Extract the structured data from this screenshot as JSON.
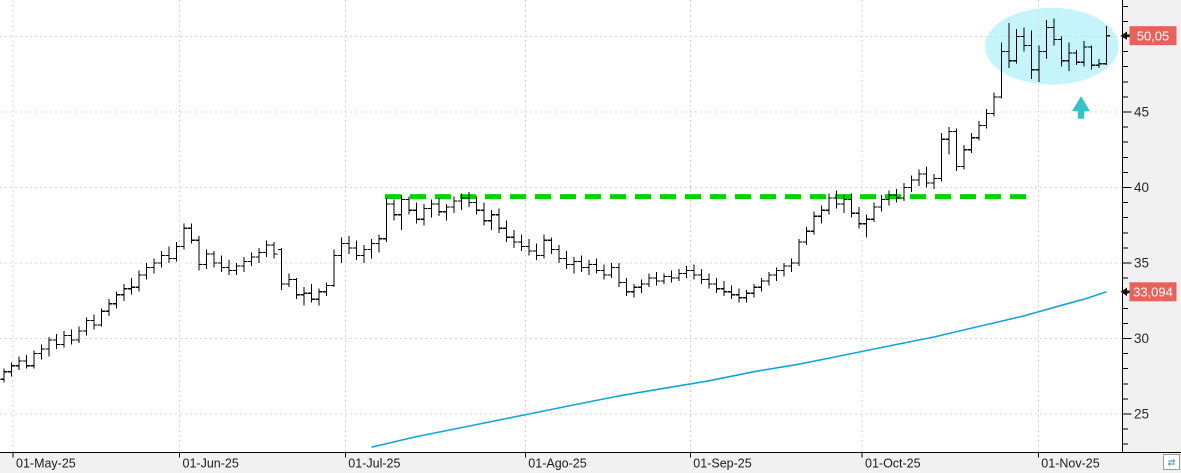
{
  "chart_data": {
    "type": "bar",
    "subtype": "ohlc-daily-bars",
    "title": "",
    "x_axis": {
      "tick_labels": [
        "01-May-25",
        "01-Jun-25",
        "01-Jul-25",
        "01-Ago-25",
        "01-Sep-25",
        "01-Oct-25",
        "01-Nov-25"
      ],
      "tick_indices": [
        1.2,
        23.4,
        45.5,
        69.5,
        91.5,
        114.4,
        137.9
      ]
    },
    "y_axis": {
      "major_ticks": [
        25,
        30,
        35,
        40,
        45,
        50
      ],
      "minor_step": 1,
      "price_range": [
        22.5,
        52.4
      ],
      "grid": true
    },
    "bars_ohlc": [
      [
        27.3,
        28.0,
        27.1,
        27.8
      ],
      [
        27.8,
        28.4,
        27.5,
        28.2
      ],
      [
        28.2,
        28.8,
        27.9,
        28.5
      ],
      [
        28.5,
        28.9,
        28.0,
        28.2
      ],
      [
        28.2,
        29.2,
        28.0,
        29.0
      ],
      [
        29.0,
        29.6,
        28.6,
        29.3
      ],
      [
        29.3,
        30.1,
        28.8,
        29.9
      ],
      [
        29.9,
        30.3,
        29.3,
        29.6
      ],
      [
        29.6,
        30.5,
        29.4,
        30.2
      ],
      [
        30.2,
        30.6,
        29.6,
        29.9
      ],
      [
        29.9,
        30.8,
        29.7,
        30.5
      ],
      [
        30.5,
        31.4,
        30.2,
        31.2
      ],
      [
        31.2,
        31.6,
        30.6,
        30.9
      ],
      [
        30.9,
        32.0,
        30.8,
        31.8
      ],
      [
        31.8,
        32.6,
        31.5,
        32.3
      ],
      [
        32.3,
        33.1,
        32.0,
        32.9
      ],
      [
        32.9,
        33.6,
        32.5,
        33.3
      ],
      [
        33.3,
        34.0,
        32.9,
        33.4
      ],
      [
        33.4,
        34.5,
        33.1,
        34.2
      ],
      [
        34.2,
        35.0,
        33.9,
        34.7
      ],
      [
        34.7,
        35.3,
        34.3,
        35.0
      ],
      [
        35.0,
        35.8,
        34.7,
        35.5
      ],
      [
        35.5,
        36.1,
        35.0,
        35.3
      ],
      [
        35.3,
        36.4,
        35.1,
        36.1
      ],
      [
        36.1,
        37.6,
        35.9,
        37.3
      ],
      [
        37.3,
        37.6,
        36.3,
        36.5
      ],
      [
        36.5,
        36.8,
        34.5,
        34.9
      ],
      [
        34.9,
        35.9,
        34.6,
        35.6
      ],
      [
        35.6,
        35.8,
        34.7,
        35.0
      ],
      [
        35.0,
        35.5,
        34.4,
        34.7
      ],
      [
        34.7,
        35.2,
        34.2,
        34.5
      ],
      [
        34.5,
        35.0,
        34.2,
        34.8
      ],
      [
        34.8,
        35.4,
        34.4,
        35.1
      ],
      [
        35.1,
        35.7,
        34.8,
        35.4
      ],
      [
        35.4,
        36.0,
        35.0,
        35.7
      ],
      [
        35.7,
        36.5,
        35.4,
        36.2
      ],
      [
        36.2,
        36.4,
        35.3,
        35.6
      ],
      [
        35.9,
        36.0,
        33.2,
        33.6
      ],
      [
        33.6,
        34.3,
        33.4,
        33.9
      ],
      [
        33.9,
        34.0,
        32.6,
        32.9
      ],
      [
        32.9,
        33.4,
        32.2,
        33.0
      ],
      [
        33.0,
        33.6,
        32.4,
        32.6
      ],
      [
        32.6,
        33.3,
        32.2,
        33.1
      ],
      [
        33.1,
        33.7,
        32.8,
        33.5
      ],
      [
        33.5,
        35.9,
        33.4,
        35.5
      ],
      [
        35.5,
        36.7,
        35.0,
        36.3
      ],
      [
        36.3,
        36.8,
        35.6,
        36.0
      ],
      [
        36.0,
        36.5,
        35.2,
        35.5
      ],
      [
        35.5,
        36.2,
        35.0,
        35.9
      ],
      [
        35.9,
        36.6,
        35.3,
        36.3
      ],
      [
        36.3,
        36.9,
        35.7,
        36.6
      ],
      [
        36.6,
        39.3,
        36.4,
        38.9
      ],
      [
        38.9,
        39.2,
        37.8,
        38.2
      ],
      [
        38.2,
        39.5,
        37.2,
        39.2
      ],
      [
        39.2,
        39.4,
        38.2,
        38.5
      ],
      [
        38.5,
        39.0,
        37.6,
        37.9
      ],
      [
        37.9,
        38.9,
        37.5,
        38.6
      ],
      [
        38.6,
        39.2,
        38.0,
        38.9
      ],
      [
        38.9,
        39.3,
        38.1,
        38.4
      ],
      [
        38.4,
        38.9,
        37.8,
        38.7
      ],
      [
        38.7,
        39.4,
        38.3,
        39.1
      ],
      [
        39.1,
        39.6,
        38.5,
        39.3
      ],
      [
        39.3,
        39.7,
        38.7,
        39.0
      ],
      [
        39.0,
        39.4,
        38.2,
        38.5
      ],
      [
        38.5,
        39.0,
        37.5,
        37.8
      ],
      [
        37.8,
        38.5,
        37.2,
        38.2
      ],
      [
        38.2,
        38.6,
        37.0,
        37.3
      ],
      [
        37.3,
        37.8,
        36.4,
        36.7
      ],
      [
        36.7,
        37.2,
        36.0,
        36.4
      ],
      [
        36.4,
        36.9,
        35.8,
        36.1
      ],
      [
        36.1,
        36.6,
        35.5,
        35.8
      ],
      [
        35.8,
        36.3,
        35.2,
        35.5
      ],
      [
        35.5,
        36.9,
        35.3,
        36.5
      ],
      [
        36.5,
        36.7,
        35.6,
        35.9
      ],
      [
        35.9,
        36.2,
        35.0,
        35.3
      ],
      [
        35.3,
        35.8,
        34.6,
        34.9
      ],
      [
        34.9,
        35.4,
        34.3,
        35.1
      ],
      [
        35.1,
        35.5,
        34.4,
        34.7
      ],
      [
        34.7,
        35.2,
        34.2,
        34.9
      ],
      [
        34.9,
        35.3,
        34.3,
        34.5
      ],
      [
        34.5,
        34.9,
        33.9,
        34.2
      ],
      [
        34.2,
        35.0,
        34.0,
        34.7
      ],
      [
        34.7,
        35.0,
        33.4,
        33.7
      ],
      [
        33.7,
        34.0,
        32.8,
        33.1
      ],
      [
        33.1,
        33.6,
        32.7,
        33.4
      ],
      [
        33.4,
        33.9,
        33.0,
        33.6
      ],
      [
        33.6,
        34.3,
        33.4,
        34.0
      ],
      [
        34.0,
        34.4,
        33.5,
        33.8
      ],
      [
        33.8,
        34.3,
        33.6,
        34.1
      ],
      [
        34.1,
        34.5,
        33.7,
        34.0
      ],
      [
        34.0,
        34.6,
        33.8,
        34.3
      ],
      [
        34.3,
        34.8,
        34.0,
        34.5
      ],
      [
        34.5,
        34.9,
        33.9,
        34.2
      ],
      [
        34.2,
        34.6,
        33.6,
        33.9
      ],
      [
        33.9,
        34.3,
        33.3,
        33.6
      ],
      [
        33.6,
        34.0,
        33.0,
        33.3
      ],
      [
        33.3,
        33.8,
        32.8,
        33.1
      ],
      [
        33.1,
        33.5,
        32.6,
        32.9
      ],
      [
        32.9,
        33.3,
        32.4,
        32.7
      ],
      [
        32.7,
        33.2,
        32.4,
        33.0
      ],
      [
        33.0,
        33.6,
        32.7,
        33.4
      ],
      [
        33.4,
        34.0,
        33.1,
        33.8
      ],
      [
        33.8,
        34.4,
        33.5,
        34.2
      ],
      [
        34.2,
        34.7,
        33.8,
        34.5
      ],
      [
        34.5,
        35.0,
        34.1,
        34.8
      ],
      [
        34.8,
        35.3,
        34.4,
        35.0
      ],
      [
        35.0,
        36.6,
        34.8,
        36.4
      ],
      [
        36.4,
        37.4,
        36.2,
        37.1
      ],
      [
        37.1,
        38.4,
        36.9,
        38.1
      ],
      [
        38.1,
        38.8,
        37.6,
        38.5
      ],
      [
        38.5,
        39.6,
        38.2,
        39.3
      ],
      [
        39.3,
        39.8,
        38.6,
        38.9
      ],
      [
        38.9,
        39.5,
        38.3,
        39.2
      ],
      [
        39.2,
        39.6,
        38.0,
        38.3
      ],
      [
        38.3,
        38.7,
        37.3,
        37.6
      ],
      [
        37.6,
        38.2,
        36.7,
        37.9
      ],
      [
        37.9,
        39.0,
        37.7,
        38.7
      ],
      [
        38.7,
        39.5,
        38.4,
        39.2
      ],
      [
        39.2,
        39.8,
        38.8,
        39.5
      ],
      [
        39.5,
        39.9,
        39.0,
        39.3
      ],
      [
        39.3,
        40.3,
        39.1,
        40.0
      ],
      [
        40.0,
        40.8,
        39.7,
        40.5
      ],
      [
        40.5,
        41.2,
        40.1,
        40.9
      ],
      [
        40.9,
        41.4,
        40.0,
        40.3
      ],
      [
        40.3,
        40.9,
        39.9,
        40.6
      ],
      [
        40.6,
        43.6,
        40.4,
        43.2
      ],
      [
        43.2,
        44.0,
        42.2,
        43.7
      ],
      [
        43.7,
        43.9,
        41.1,
        41.4
      ],
      [
        41.4,
        42.8,
        41.2,
        42.5
      ],
      [
        42.5,
        43.6,
        42.3,
        43.3
      ],
      [
        43.3,
        44.4,
        43.1,
        44.1
      ],
      [
        44.1,
        45.2,
        43.9,
        44.9
      ],
      [
        44.9,
        46.3,
        44.7,
        46.0
      ],
      [
        46.0,
        49.6,
        45.9,
        49.0
      ],
      [
        49.0,
        50.9,
        47.9,
        48.4
      ],
      [
        48.4,
        50.5,
        48.2,
        50.0
      ],
      [
        50.0,
        50.6,
        49.0,
        49.4
      ],
      [
        49.4,
        50.4,
        47.2,
        47.8
      ],
      [
        47.8,
        49.4,
        47.0,
        49.0
      ],
      [
        49.0,
        51.1,
        48.5,
        50.6
      ],
      [
        50.6,
        51.2,
        49.4,
        49.8
      ],
      [
        49.8,
        50.0,
        48.0,
        48.4
      ],
      [
        48.4,
        49.6,
        47.7,
        48.9
      ],
      [
        48.9,
        49.1,
        48.1,
        48.3
      ],
      [
        48.3,
        49.7,
        48.0,
        49.3
      ],
      [
        49.3,
        49.4,
        47.8,
        48.1
      ],
      [
        48.1,
        48.5,
        47.9,
        48.2
      ],
      [
        48.2,
        50.7,
        48.1,
        50.05
      ]
    ],
    "overlays": {
      "ma_line": {
        "name": "moving-average",
        "color": "#14a5d4",
        "points": [
          [
            49,
            22.8
          ],
          [
            55,
            23.5
          ],
          [
            61,
            24.1
          ],
          [
            67,
            24.7
          ],
          [
            70,
            25.0
          ],
          [
            76,
            25.6
          ],
          [
            82,
            26.2
          ],
          [
            88,
            26.7
          ],
          [
            94,
            27.2
          ],
          [
            100,
            27.8
          ],
          [
            106,
            28.3
          ],
          [
            112,
            28.9
          ],
          [
            118,
            29.5
          ],
          [
            124,
            30.1
          ],
          [
            130,
            30.8
          ],
          [
            136,
            31.5
          ],
          [
            141,
            32.2
          ],
          [
            144,
            32.6
          ],
          [
            147,
            33.094
          ]
        ]
      },
      "resistance_line": {
        "name": "horizontal-resistance",
        "color": "#00d300",
        "style": "dashed",
        "value": 39.4,
        "from_index": 50.8,
        "to_index": 136.5
      },
      "highlight_ellipse": {
        "name": "consolidation-highlight",
        "color": "#c6f4fb",
        "center_index": 139.7,
        "center_value": 49.35,
        "radius_bars": 8.9,
        "radius_values": 2.55
      },
      "up_arrow": {
        "name": "buy-signal-arrow",
        "color": "#35c2c9",
        "index": 143.6,
        "tip_value": 46.05,
        "head_base_value": 45.05,
        "base_value": 44.55
      }
    },
    "price_tags": [
      {
        "text": "50,05",
        "value": 50.05,
        "bg": "#e8625c",
        "fg": "#ffffff"
      },
      {
        "text": "33,094",
        "value": 33.094,
        "bg": "#e8625c",
        "fg": "#ffffff"
      }
    ]
  },
  "style_colors": {
    "bar_color": "#000000",
    "grid_color": "#d6d6d6",
    "axis_bg": "#f1f1f1",
    "axis_line": "#000000",
    "label_color": "#1c1c1c"
  },
  "corner_button": {
    "glyph": "⇄",
    "glyph_color": "#4a7fb5"
  }
}
